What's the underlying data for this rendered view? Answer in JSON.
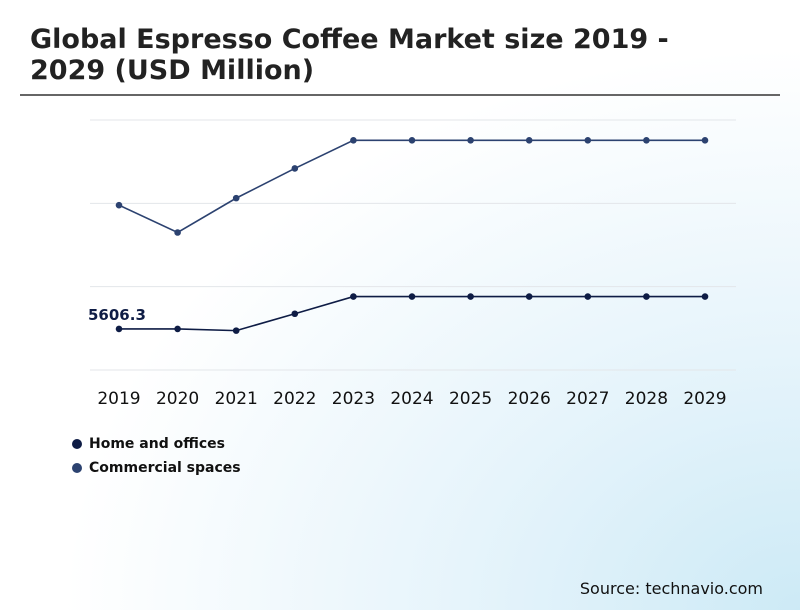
{
  "title": "Global Espresso Coffee Market size 2019 - 2029 (USD Million)",
  "source": "Source: technavio.com",
  "colors": {
    "home": "#0e1c45",
    "commercial": "#2c4270",
    "grid": "#e3e6ea"
  },
  "chart_data": {
    "type": "line",
    "title": "Global Espresso Coffee Market size 2019 - 2029 (USD Million)",
    "categories": [
      "2019",
      "2020",
      "2021",
      "2022",
      "2023",
      "2024",
      "2025",
      "2026",
      "2027",
      "2028",
      "2029"
    ],
    "ylim": [
      5580,
      5740
    ],
    "grid": true,
    "yticks_shown": false,
    "series": [
      {
        "name": "Home and offices",
        "values": [
          5606.3,
          5606.3,
          5605.2,
          5616.0,
          5627.0,
          5627.0,
          5627.0,
          5627.0,
          5627.0,
          5627.0,
          5627.0
        ]
      },
      {
        "name": "Commercial spaces",
        "values": [
          5685.5,
          5668.0,
          5690.0,
          5709.0,
          5727.0,
          5727.0,
          5727.0,
          5727.0,
          5727.0,
          5727.0,
          5727.0
        ]
      }
    ],
    "annotations": [
      {
        "series": 0,
        "index": 0,
        "label": "5606.3"
      }
    ],
    "legend": "bottom-left"
  }
}
